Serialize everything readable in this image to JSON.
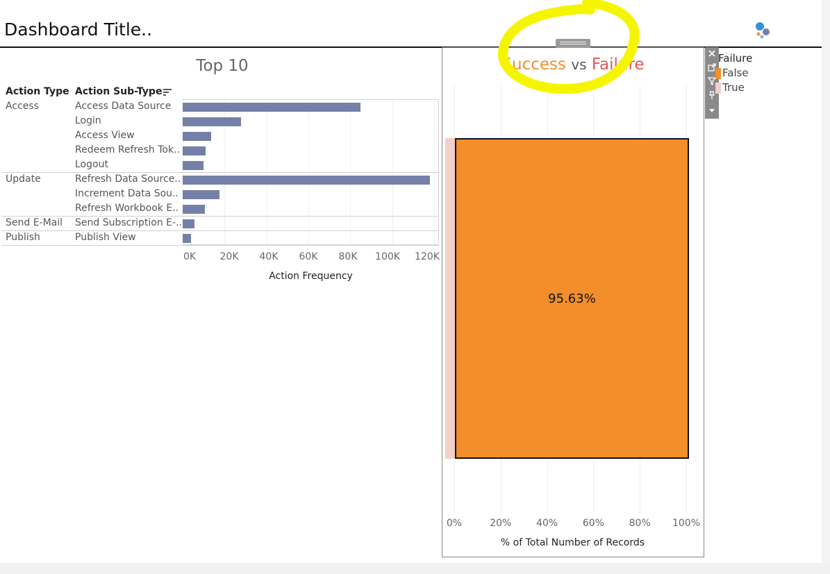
{
  "dashboard": {
    "title": "Dashboard Title.."
  },
  "top10": {
    "title": "Top 10",
    "headers": {
      "action_type": "Action Type",
      "action_subtype": "Action Sub-Type"
    },
    "groups": [
      "Access",
      "Update",
      "Send E-Mail",
      "Publish"
    ],
    "xlabel": "Action Frequency",
    "xticks": [
      "0K",
      "20K",
      "40K",
      "60K",
      "80K",
      "100K",
      "120K"
    ]
  },
  "success_vs_failure": {
    "title_success": "Success",
    "title_vs": "vs",
    "title_failure": "Failure",
    "label": "95.63%",
    "xlabel": "% of Total Number of Records",
    "xticks": [
      "0%",
      "20%",
      "40%",
      "60%",
      "80%",
      "100%"
    ]
  },
  "legend": {
    "title": "Failure",
    "items": [
      {
        "label": "False",
        "color": "#f28e2b"
      },
      {
        "label": "True",
        "color": "#f2cfc9"
      }
    ]
  },
  "chart_data": [
    {
      "type": "bar",
      "title": "Top 10",
      "xlabel": "Action Frequency",
      "xlim": [
        0,
        120000
      ],
      "categories": [
        "Access Data Source",
        "Login",
        "Access View",
        "Redeem Refresh Tok..",
        "Logout",
        "Refresh Data Source..",
        "Increment Data Sou..",
        "Refresh Workbook E..",
        "Send Subscription E-..",
        "Publish View"
      ],
      "groups": [
        "Access",
        "Access",
        "Access",
        "Access",
        "Access",
        "Update",
        "Update",
        "Update",
        "Send E-Mail",
        "Publish"
      ],
      "values": [
        85000,
        28000,
        13500,
        11000,
        10000,
        118000,
        17500,
        10500,
        5500,
        4000
      ],
      "color": "#7480a8"
    },
    {
      "type": "bar",
      "title": "Success vs Failure",
      "xlabel": "% of Total Number of Records",
      "xlim": [
        0,
        100
      ],
      "series": [
        {
          "name": "True",
          "values": [
            4.37
          ],
          "color": "#f2cfc9"
        },
        {
          "name": "False",
          "values": [
            95.63
          ],
          "color": "#f28e2b"
        }
      ],
      "label": "95.63%"
    }
  ]
}
